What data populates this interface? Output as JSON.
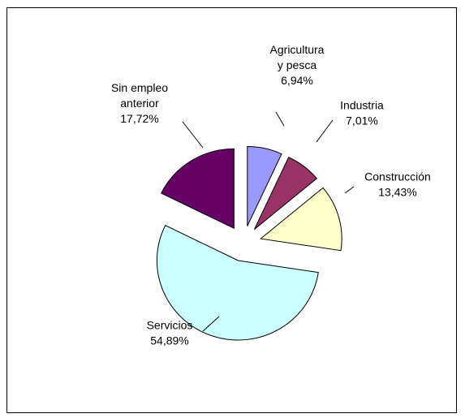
{
  "chart_data": {
    "type": "pie",
    "title": "",
    "slices": [
      {
        "label_lines": [
          "Agricultura",
          "y pesca"
        ],
        "value": 6.94,
        "value_label": "6,94%",
        "color": "#9999FF"
      },
      {
        "label_lines": [
          "Industria"
        ],
        "value": 7.01,
        "value_label": "7,01%",
        "color": "#993366"
      },
      {
        "label_lines": [
          "Construcción"
        ],
        "value": 13.43,
        "value_label": "13,43%",
        "color": "#FFFFCC"
      },
      {
        "label_lines": [
          "Servicios"
        ],
        "value": 54.89,
        "value_label": "54,89%",
        "color": "#CCFFFF"
      },
      {
        "label_lines": [
          "Sin empleo",
          "anterior"
        ],
        "value": 17.72,
        "value_label": "17,72%",
        "color": "#660066"
      }
    ],
    "exploded": true,
    "legend": "none",
    "data_labels": "outside with leader lines"
  }
}
